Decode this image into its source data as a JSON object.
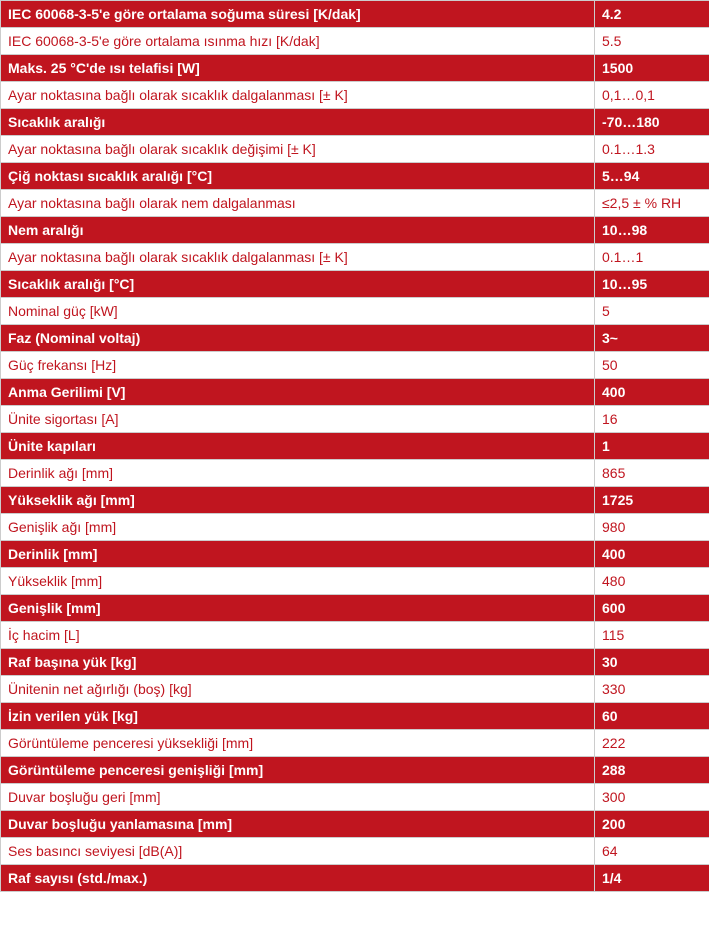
{
  "specs": [
    {
      "label": "IEC 60068-3-5'e göre ortalama soğuma süresi [K/dak]",
      "value": "4.2"
    },
    {
      "label": "IEC 60068-3-5'e göre ortalama ısınma hızı [K/dak]",
      "value": "5.5"
    },
    {
      "label": "Maks. 25 °C'de ısı telafisi [W]",
      "value": "1500"
    },
    {
      "label": "Ayar noktasına bağlı olarak sıcaklık dalgalanması [± K]",
      "value": "0,1…0,1"
    },
    {
      "label": "Sıcaklık aralığı",
      "value": "-70…180"
    },
    {
      "label": "Ayar noktasına bağlı olarak sıcaklık değişimi [± K]",
      "value": "0.1…1.3"
    },
    {
      "label": "Çiğ noktası sıcaklık aralığı [°C]",
      "value": "5…94"
    },
    {
      "label": "Ayar noktasına bağlı olarak nem dalgalanması",
      "value": "≤2,5 ± % RH"
    },
    {
      "label": "Nem aralığı",
      "value": "10…98"
    },
    {
      "label": "Ayar noktasına bağlı olarak sıcaklık dalgalanması [± K]",
      "value": "0.1…1"
    },
    {
      "label": "Sıcaklık aralığı [°C]",
      "value": "10…95"
    },
    {
      "label": "Nominal güç [kW]",
      "value": "5"
    },
    {
      "label": "Faz (Nominal voltaj)",
      "value": "3~"
    },
    {
      "label": "Güç frekansı [Hz]",
      "value": "50"
    },
    {
      "label": "Anma Gerilimi [V]",
      "value": "400"
    },
    {
      "label": "Ünite sigortası [A]",
      "value": "16"
    },
    {
      "label": "Ünite kapıları",
      "value": "1"
    },
    {
      "label": "Derinlik ağı [mm]",
      "value": "865"
    },
    {
      "label": "Yükseklik ağı [mm]",
      "value": "1725"
    },
    {
      "label": "Genişlik ağı [mm]",
      "value": "980"
    },
    {
      "label": "Derinlik [mm]",
      "value": "400"
    },
    {
      "label": "Yükseklik [mm]",
      "value": "480"
    },
    {
      "label": "Genişlik [mm]",
      "value": "600"
    },
    {
      "label": "İç hacim [L]",
      "value": "115"
    },
    {
      "label": "Raf başına yük [kg]",
      "value": "30"
    },
    {
      "label": "Ünitenin net ağırlığı (boş) [kg]",
      "value": "330"
    },
    {
      "label": "İzin verilen yük [kg]",
      "value": "60"
    },
    {
      "label": "Görüntüleme penceresi yüksekliği [mm]",
      "value": "222"
    },
    {
      "label": "Görüntüleme penceresi genişliği [mm]",
      "value": "288"
    },
    {
      "label": "Duvar boşluğu geri [mm]",
      "value": "300"
    },
    {
      "label": "Duvar boşluğu yanlamasına [mm]",
      "value": "200"
    },
    {
      "label": "Ses basıncı seviyesi [dB(A)]",
      "value": "64"
    },
    {
      "label": "Raf sayısı (std./max.)",
      "value": "1/4"
    }
  ],
  "colors": {
    "accent_red": "#c0151f",
    "light_row_bg": "#ffffff",
    "border": "#cccccc"
  }
}
